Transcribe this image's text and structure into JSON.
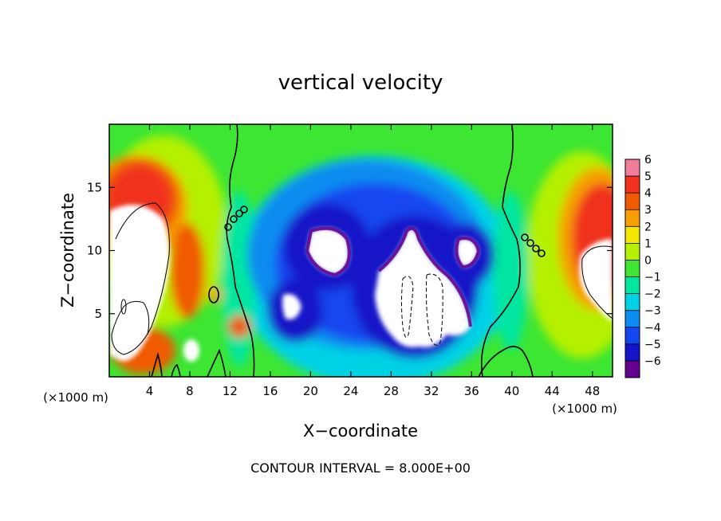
{
  "chart_data": {
    "type": "heatmap",
    "title": "vertical velocity",
    "xlabel": "X−coordinate",
    "ylabel": "Z−coordinate",
    "x_unit_left": "(×1000 m)",
    "x_unit_right": "(×1000 m)",
    "footer": "CONTOUR INTERVAL = 8.000E+00",
    "xlim": [
      0,
      50
    ],
    "ylim": [
      0,
      20
    ],
    "x_ticks": [
      4,
      8,
      12,
      16,
      20,
      24,
      28,
      32,
      36,
      40,
      44,
      48
    ],
    "y_ticks": [
      5,
      10,
      15
    ],
    "colorbar": {
      "levels": [
        -6,
        -5,
        -4,
        -3,
        -2,
        -1,
        0,
        1,
        2,
        3,
        4,
        5,
        6
      ],
      "labels": [
        "6",
        "5",
        "4",
        "3",
        "2",
        "1",
        "0",
        "−1",
        "−2",
        "−3",
        "−4",
        "−5",
        "−6"
      ],
      "colors": [
        "#f07e9a",
        "#f0321e",
        "#f05a00",
        "#f5a000",
        "#f5e600",
        "#b4f000",
        "#3ce632",
        "#00e6a0",
        "#00d2e6",
        "#0a8cf0",
        "#1446f0",
        "#1414c8",
        "#64008c"
      ],
      "clip_low": "#ffffff",
      "clip_high": "#ffffff"
    },
    "background_color": "#3ce632"
  }
}
